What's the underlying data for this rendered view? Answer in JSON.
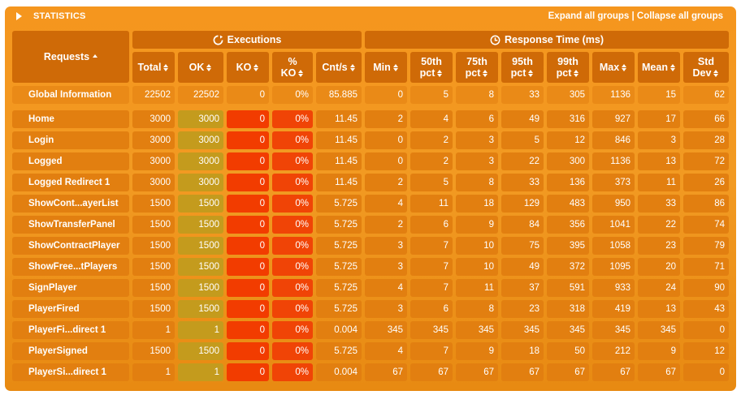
{
  "header": {
    "title": "STATISTICS",
    "expand_label": "Expand all groups",
    "separator": " | ",
    "collapse_label": "Collapse all groups"
  },
  "groups": {
    "executions": "Executions",
    "response_time": "Response Time (ms)"
  },
  "columns": {
    "requests": "Requests",
    "total": "Total",
    "ok": "OK",
    "ko": "KO",
    "ko_pct_1": "%",
    "ko_pct_2": "KO",
    "cnt_s": "Cnt/s",
    "min": "Min",
    "p50_1": "50th",
    "p50_2": "pct",
    "p75_1": "75th",
    "p75_2": "pct",
    "p95_1": "95th",
    "p95_2": "pct",
    "p99_1": "99th",
    "p99_2": "pct",
    "max": "Max",
    "mean": "Mean",
    "std_1": "Std",
    "std_2": "Dev"
  },
  "global": [
    "Global Information",
    "22502",
    "22502",
    "0",
    "0%",
    "85.885",
    "0",
    "5",
    "8",
    "33",
    "305",
    "1136",
    "15",
    "62"
  ],
  "rows": [
    [
      "Home",
      "3000",
      "3000",
      "0",
      "0%",
      "11.45",
      "2",
      "4",
      "6",
      "49",
      "316",
      "927",
      "17",
      "66"
    ],
    [
      "Login",
      "3000",
      "3000",
      "0",
      "0%",
      "11.45",
      "0",
      "2",
      "3",
      "5",
      "12",
      "846",
      "3",
      "28"
    ],
    [
      "Logged",
      "3000",
      "3000",
      "0",
      "0%",
      "11.45",
      "0",
      "2",
      "3",
      "22",
      "300",
      "1136",
      "13",
      "72"
    ],
    [
      "Logged Redirect 1",
      "3000",
      "3000",
      "0",
      "0%",
      "11.45",
      "2",
      "5",
      "8",
      "33",
      "136",
      "373",
      "11",
      "26"
    ],
    [
      "ShowCont...ayerList",
      "1500",
      "1500",
      "0",
      "0%",
      "5.725",
      "4",
      "11",
      "18",
      "129",
      "483",
      "950",
      "33",
      "86"
    ],
    [
      "ShowTransferPanel",
      "1500",
      "1500",
      "0",
      "0%",
      "5.725",
      "2",
      "6",
      "9",
      "84",
      "356",
      "1041",
      "22",
      "74"
    ],
    [
      "ShowContractPlayer",
      "1500",
      "1500",
      "0",
      "0%",
      "5.725",
      "3",
      "7",
      "10",
      "75",
      "395",
      "1058",
      "23",
      "79"
    ],
    [
      "ShowFree...tPlayers",
      "1500",
      "1500",
      "0",
      "0%",
      "5.725",
      "3",
      "7",
      "10",
      "49",
      "372",
      "1095",
      "20",
      "71"
    ],
    [
      "SignPlayer",
      "1500",
      "1500",
      "0",
      "0%",
      "5.725",
      "4",
      "7",
      "11",
      "37",
      "591",
      "933",
      "24",
      "90"
    ],
    [
      "PlayerFired",
      "1500",
      "1500",
      "0",
      "0%",
      "5.725",
      "3",
      "6",
      "8",
      "23",
      "318",
      "419",
      "13",
      "43"
    ],
    [
      "PlayerFi...direct 1",
      "1",
      "1",
      "0",
      "0%",
      "0.004",
      "345",
      "345",
      "345",
      "345",
      "345",
      "345",
      "345",
      "0"
    ],
    [
      "PlayerSigned",
      "1500",
      "1500",
      "0",
      "0%",
      "5.725",
      "4",
      "7",
      "9",
      "18",
      "50",
      "212",
      "9",
      "12"
    ],
    [
      "PlayerSi...direct 1",
      "1",
      "1",
      "0",
      "0%",
      "0.004",
      "67",
      "67",
      "67",
      "67",
      "67",
      "67",
      "67",
      "0"
    ]
  ],
  "colors": {
    "panel": "#f29a22",
    "header_cell": "#cf6a07",
    "row_cell": "#e27f10",
    "ok_cell": "#c49b1d",
    "ko_cell": "#f23c00",
    "text": "#ffffff"
  },
  "icons": {
    "expand": "triangle-right-icon",
    "executions": "refresh-icon",
    "response_time": "clock-icon",
    "sort": "sort-arrows-icon"
  }
}
